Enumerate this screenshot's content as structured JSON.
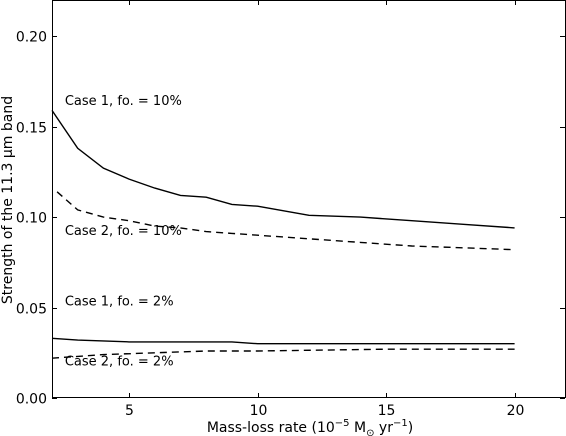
{
  "chart_data": {
    "type": "line",
    "title": "",
    "xlabel": "Mass-loss rate (10⁻⁵ M⊙ yr⁻¹)",
    "xlabel_parts": {
      "prefix": "Mass-loss rate (10",
      "exp1": "−5",
      "mid": " M",
      "sun_sub": "⊙",
      "mid2": " yr",
      "exp2": "−1",
      "suffix": ")"
    },
    "ylabel": "Strength of the 11.3 μm band",
    "xlim": [
      2,
      22
    ],
    "ylim": [
      0.0,
      0.22
    ],
    "xticks": [
      5,
      10,
      15,
      20
    ],
    "xtick_labels": [
      "5",
      "10",
      "15",
      "20"
    ],
    "yticks": [
      0.0,
      0.05,
      0.1,
      0.15,
      0.2
    ],
    "ytick_labels": [
      "0.00",
      "0.05",
      "0.10",
      "0.15",
      "0.20"
    ],
    "grid": false,
    "series": [
      {
        "style": "solid",
        "color": "#000000",
        "x": [
          2,
          3,
          4,
          5,
          6,
          7,
          8,
          9,
          10,
          12,
          14,
          16,
          18,
          20
        ],
        "y": [
          0.159,
          0.138,
          0.127,
          0.121,
          0.116,
          0.112,
          0.111,
          0.107,
          0.106,
          0.101,
          0.1,
          0.098,
          0.096,
          0.094
        ]
      },
      {
        "style": "dashed",
        "color": "#000000",
        "x": [
          2.2,
          3,
          4,
          5,
          6,
          7,
          8,
          9,
          10,
          12,
          14,
          16,
          18,
          20
        ],
        "y": [
          0.114,
          0.104,
          0.1,
          0.098,
          0.095,
          0.094,
          0.092,
          0.091,
          0.09,
          0.088,
          0.086,
          0.084,
          0.083,
          0.082
        ]
      },
      {
        "style": "solid",
        "color": "#000000",
        "x": [
          2,
          3,
          5,
          7,
          9,
          10,
          15,
          20
        ],
        "y": [
          0.033,
          0.032,
          0.031,
          0.031,
          0.031,
          0.03,
          0.03,
          0.03
        ]
      },
      {
        "style": "dashed",
        "color": "#000000",
        "x": [
          2,
          4,
          6,
          8,
          10,
          15,
          20
        ],
        "y": [
          0.022,
          0.024,
          0.025,
          0.026,
          0.026,
          0.027,
          0.027
        ]
      }
    ],
    "annotations": [
      {
        "text": "Case 1, fo. = 10%",
        "x": 2.5,
        "y": 0.162
      },
      {
        "text": "Case 2, fo. = 10%",
        "x": 2.5,
        "y": 0.09
      },
      {
        "text": "Case 1, fo. = 2%",
        "x": 2.5,
        "y": 0.051
      },
      {
        "text": "Case 2, fo. = 2%",
        "x": 2.5,
        "y": 0.018
      }
    ]
  }
}
